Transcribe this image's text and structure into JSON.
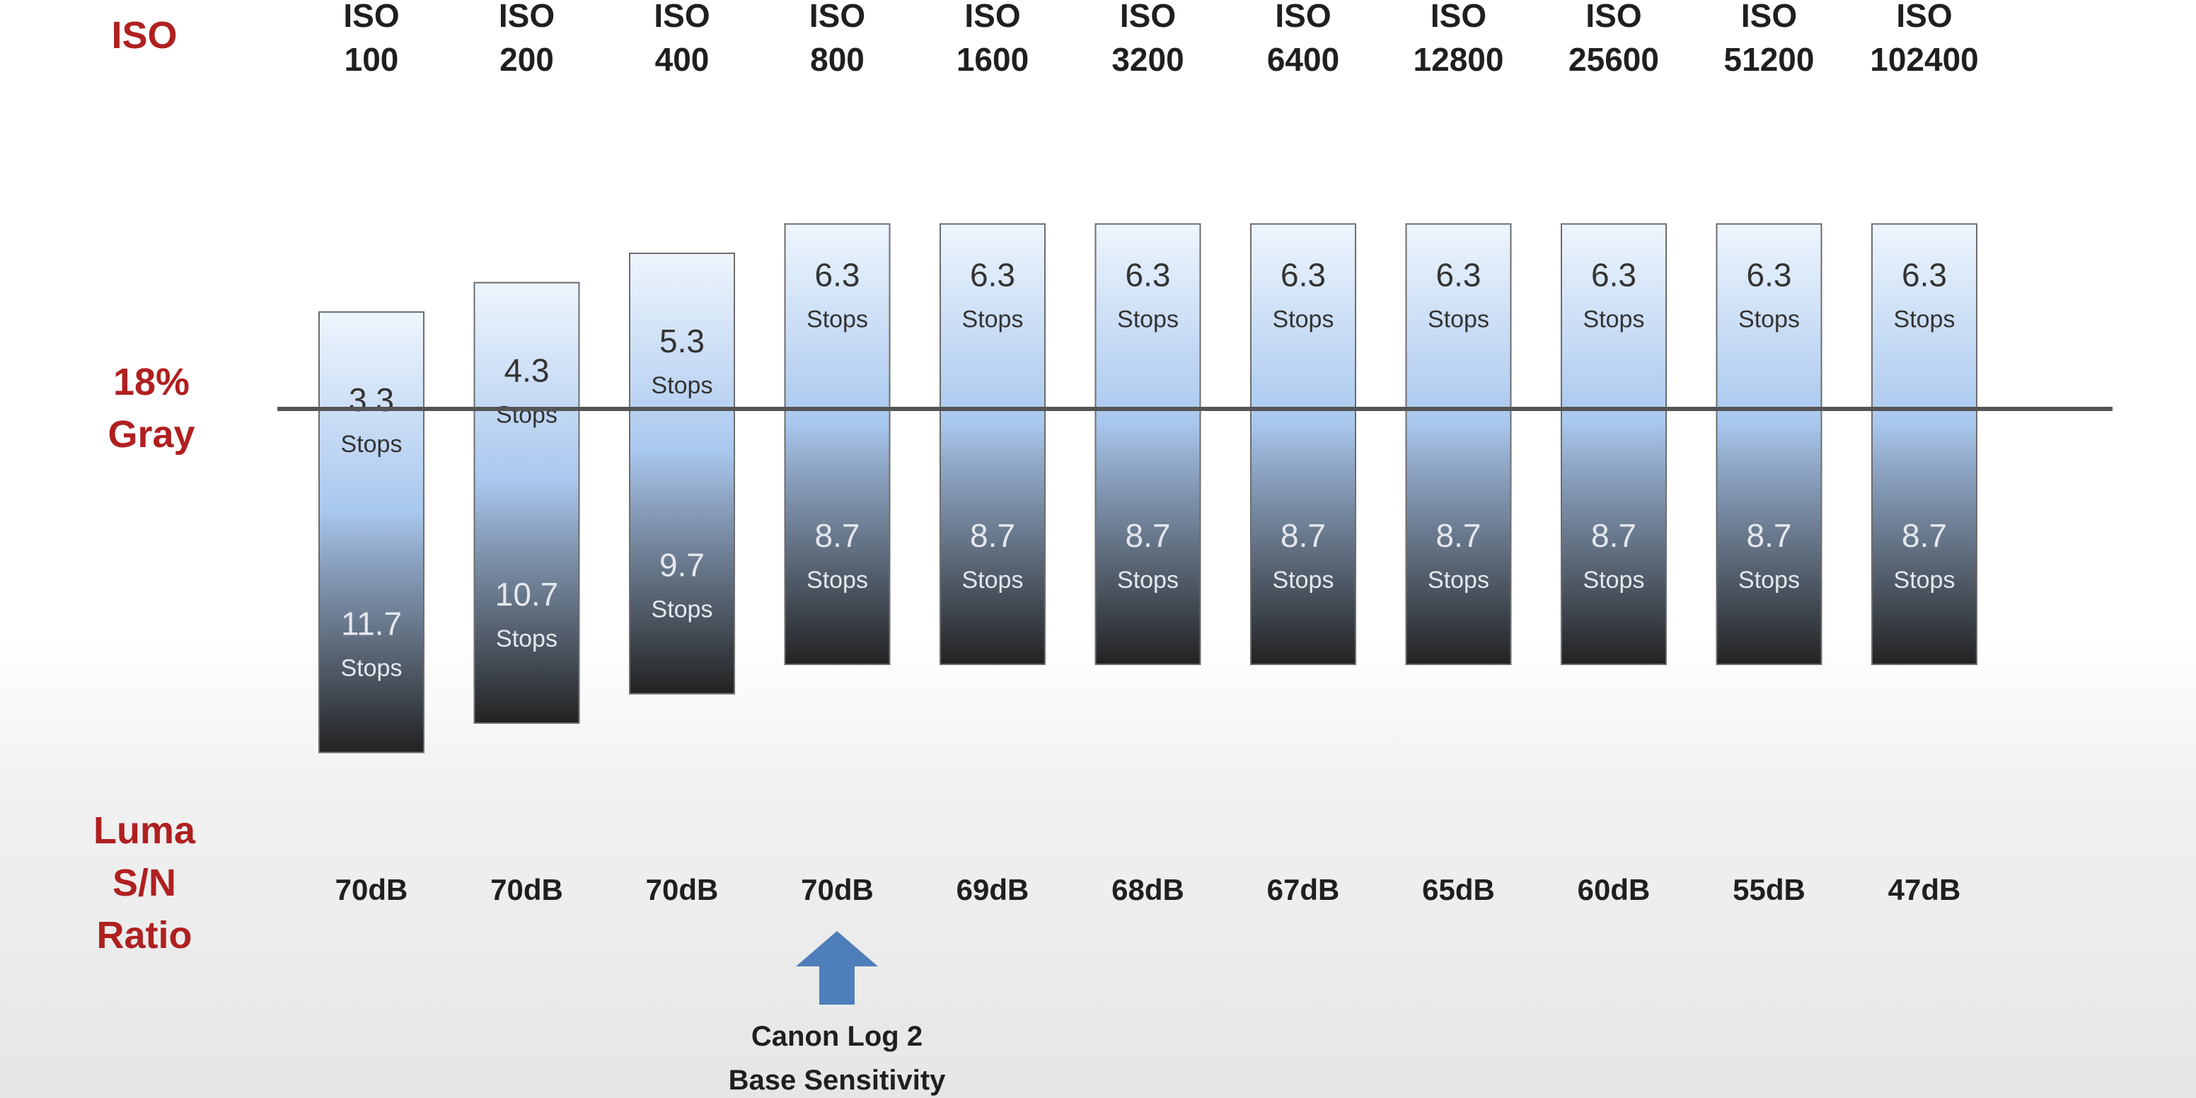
{
  "chart_data": {
    "type": "bar",
    "categories_line1": [
      "ISO",
      "ISO",
      "ISO",
      "ISO",
      "ISO",
      "ISO",
      "ISO",
      "ISO",
      "ISO",
      "ISO",
      "ISO"
    ],
    "categories": [
      "100",
      "200",
      "400",
      "800",
      "1600",
      "3200",
      "6400",
      "12800",
      "25600",
      "51200",
      "102400"
    ],
    "series": [
      {
        "name": "",
        "values": [
          3.3,
          4.3,
          5.3,
          6.3,
          6.3,
          6.3,
          6.3,
          6.3,
          6.3,
          6.3,
          6.3
        ]
      },
      {
        "name": "",
        "values": [
          11.7,
          10.7,
          9.7,
          8.7,
          8.7,
          8.7,
          8.7,
          8.7,
          8.7,
          8.7,
          8.7
        ]
      }
    ],
    "value_unit": "Stops",
    "snr": [
      "70dB",
      "70dB",
      "70dB",
      "70dB",
      "69dB",
      "68dB",
      "67dB",
      "65dB",
      "60dB",
      "55dB",
      "47dB"
    ],
    "row_labels": {
      "iso": "ISO",
      "gray_line1": "18%",
      "gray_line2": "Gray",
      "snr_line1": "Luma",
      "snr_line2": "S/N",
      "snr_line3": "Ratio"
    },
    "annotation": {
      "category": "800",
      "line1": "Canon Log 2",
      "line2": "Base Sensitivity",
      "arrow_color": "#4f7fba"
    },
    "colors": {
      "bar_top": "#a9c8ee",
      "bar_light": "#eef5fd",
      "bar_dark": "#222222",
      "reference_line": "#555555",
      "label_red": "#b02020"
    }
  }
}
